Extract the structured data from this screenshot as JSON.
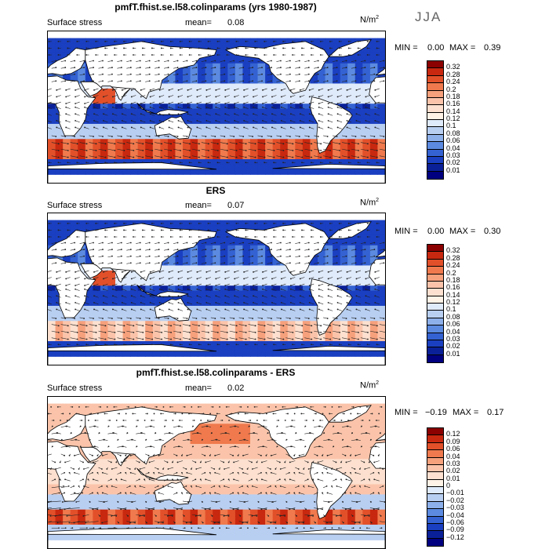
{
  "season": "JJA",
  "unit_base": "N/m",
  "unit_exp": "2",
  "panels": [
    {
      "title": "pmfT.fhist.se.l58.colinparams (yrs 1980-1987)",
      "field_label": "Surface stress",
      "mean_label": "mean=",
      "mean_value": "0.08",
      "min_label": "MIN =",
      "min_value": "0.00",
      "max_label": "MAX =",
      "max_value": "0.39",
      "colorbar": {
        "labels": [
          "0.32",
          "0.28",
          "0.24",
          "0.2",
          "0.18",
          "0.16",
          "0.14",
          "0.12",
          "0.1",
          "0.08",
          "0.06",
          "0.04",
          "0.03",
          "0.02",
          "0.01"
        ],
        "colors": [
          "#8b0000",
          "#c8280f",
          "#e2502a",
          "#f07a4d",
          "#f6a07c",
          "#fbc4aa",
          "#fde0cf",
          "#fff2e6",
          "#dfeafa",
          "#b8cff2",
          "#8db0ea",
          "#5b8ae0",
          "#3462d2",
          "#1a3fc0",
          "#0a2098",
          "#000080"
        ]
      }
    },
    {
      "title": "ERS",
      "field_label": "Surface stress",
      "mean_label": "mean=",
      "mean_value": "0.07",
      "min_label": "MIN =",
      "min_value": "0.00",
      "max_label": "MAX =",
      "max_value": "0.30",
      "colorbar": {
        "labels": [
          "0.32",
          "0.28",
          "0.24",
          "0.2",
          "0.18",
          "0.16",
          "0.14",
          "0.12",
          "0.1",
          "0.08",
          "0.06",
          "0.04",
          "0.03",
          "0.02",
          "0.01"
        ],
        "colors": [
          "#8b0000",
          "#c8280f",
          "#e2502a",
          "#f07a4d",
          "#f6a07c",
          "#fbc4aa",
          "#fde0cf",
          "#fff2e6",
          "#dfeafa",
          "#b8cff2",
          "#8db0ea",
          "#5b8ae0",
          "#3462d2",
          "#1a3fc0",
          "#0a2098",
          "#000080"
        ]
      }
    },
    {
      "title": "pmfT.fhist.se.l58.colinparams - ERS",
      "field_label": "Surface stress",
      "mean_label": "mean=",
      "mean_value": "0.02",
      "min_label": "MIN =",
      "min_value": "−0.19",
      "max_label": "MAX =",
      "max_value": "0.17",
      "colorbar": {
        "labels": [
          "0.12",
          "0.09",
          "0.06",
          "0.04",
          "0.03",
          "0.02",
          "0.01",
          "0",
          "−0.01",
          "−0.02",
          "−0.03",
          "−0.04",
          "−0.06",
          "−0.09",
          "−0.12"
        ],
        "colors": [
          "#8b0000",
          "#c8280f",
          "#e2502a",
          "#f07a4d",
          "#f6a07c",
          "#fbc4aa",
          "#fde0cf",
          "#fff2e6",
          "#dfeafa",
          "#b8cff2",
          "#8db0ea",
          "#5b8ae0",
          "#3462d2",
          "#1a3fc0",
          "#0a2098",
          "#000080"
        ]
      }
    }
  ]
}
